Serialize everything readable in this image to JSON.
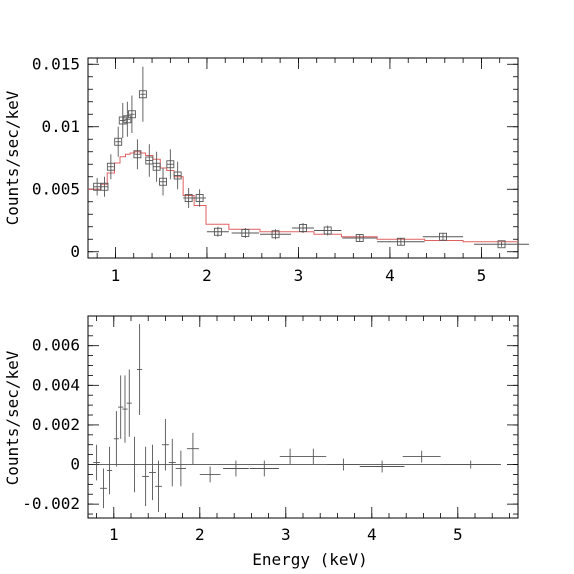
{
  "chart_data": [
    {
      "type": "scatter",
      "ylabel": "Counts/sec/keV",
      "xlabel": "",
      "xlim": [
        0.7,
        5.4
      ],
      "ylim": [
        -0.0005,
        0.0155
      ],
      "xticks": [
        1,
        2,
        3,
        4,
        5
      ],
      "xtick_labels": [
        "1",
        "2",
        "3",
        "4",
        "5"
      ],
      "yticks": [
        0,
        0.005,
        0.01,
        0.015
      ],
      "ytick_labels": [
        "0",
        "0.005",
        "0.01",
        "0.015"
      ],
      "series": [
        {
          "marker": "square",
          "points": [
            {
              "x": 0.8,
              "xerr": 0.04,
              "y": 0.0052,
              "yerr": 0.0007
            },
            {
              "x": 0.88,
              "xerr": 0.04,
              "y": 0.0052,
              "yerr": 0.0008
            },
            {
              "x": 0.95,
              "xerr": 0.03,
              "y": 0.0068,
              "yerr": 0.001
            },
            {
              "x": 1.03,
              "xerr": 0.03,
              "y": 0.0088,
              "yerr": 0.0012
            },
            {
              "x": 1.08,
              "xerr": 0.03,
              "y": 0.0105,
              "yerr": 0.0014
            },
            {
              "x": 1.13,
              "xerr": 0.03,
              "y": 0.0106,
              "yerr": 0.0014
            },
            {
              "x": 1.18,
              "xerr": 0.03,
              "y": 0.011,
              "yerr": 0.0015
            },
            {
              "x": 1.24,
              "xerr": 0.03,
              "y": 0.0078,
              "yerr": 0.0012
            },
            {
              "x": 1.3,
              "xerr": 0.03,
              "y": 0.0126,
              "yerr": 0.0022
            },
            {
              "x": 1.37,
              "xerr": 0.04,
              "y": 0.0073,
              "yerr": 0.0013
            },
            {
              "x": 1.45,
              "xerr": 0.04,
              "y": 0.0068,
              "yerr": 0.0012
            },
            {
              "x": 1.52,
              "xerr": 0.04,
              "y": 0.0056,
              "yerr": 0.0011
            },
            {
              "x": 1.6,
              "xerr": 0.04,
              "y": 0.007,
              "yerr": 0.0012
            },
            {
              "x": 1.68,
              "xerr": 0.04,
              "y": 0.0061,
              "yerr": 0.0011
            },
            {
              "x": 1.8,
              "xerr": 0.06,
              "y": 0.0043,
              "yerr": 0.0008
            },
            {
              "x": 1.92,
              "xerr": 0.07,
              "y": 0.0043,
              "yerr": 0.0007
            },
            {
              "x": 2.12,
              "xerr": 0.12,
              "y": 0.0016,
              "yerr": 0.0004
            },
            {
              "x": 2.42,
              "xerr": 0.15,
              "y": 0.0015,
              "yerr": 0.0004
            },
            {
              "x": 2.75,
              "xerr": 0.17,
              "y": 0.0014,
              "yerr": 0.0004
            },
            {
              "x": 3.05,
              "xerr": 0.12,
              "y": 0.0019,
              "yerr": 0.0004
            },
            {
              "x": 3.32,
              "xerr": 0.15,
              "y": 0.0017,
              "yerr": 0.0004
            },
            {
              "x": 3.67,
              "xerr": 0.19,
              "y": 0.0011,
              "yerr": 0.0003
            },
            {
              "x": 4.12,
              "xerr": 0.26,
              "y": 0.0008,
              "yerr": 0.0003
            },
            {
              "x": 4.58,
              "xerr": 0.22,
              "y": 0.0012,
              "yerr": 0.0003
            },
            {
              "x": 5.22,
              "xerr": 0.3,
              "y": 0.0006,
              "yerr": 0.0002
            }
          ]
        }
      ],
      "model_step": [
        [
          0.7,
          0.005
        ],
        [
          0.84,
          0.0054
        ],
        [
          0.91,
          0.0063
        ],
        [
          0.99,
          0.0071
        ],
        [
          1.05,
          0.0076
        ],
        [
          1.11,
          0.0078
        ],
        [
          1.16,
          0.0079
        ],
        [
          1.21,
          0.008
        ],
        [
          1.27,
          0.0079
        ],
        [
          1.33,
          0.0077
        ],
        [
          1.41,
          0.0074
        ],
        [
          1.49,
          0.0067
        ],
        [
          1.56,
          0.0065
        ],
        [
          1.64,
          0.006
        ],
        [
          1.74,
          0.0045
        ],
        [
          1.86,
          0.0037
        ],
        [
          1.99,
          0.0022
        ],
        [
          2.24,
          0.0018
        ],
        [
          2.58,
          0.0016
        ],
        [
          2.92,
          0.0016
        ],
        [
          3.17,
          0.0014
        ],
        [
          3.47,
          0.0012
        ],
        [
          3.86,
          0.001
        ],
        [
          4.38,
          0.0009
        ],
        [
          4.8,
          0.0008
        ],
        [
          5.4,
          0.0008
        ]
      ]
    },
    {
      "type": "scatter",
      "ylabel": "Counts/sec/keV",
      "xlabel": "Energy (keV)",
      "xlim": [
        0.7,
        5.7
      ],
      "ylim": [
        -0.0027,
        0.0075
      ],
      "xticks": [
        1,
        2,
        3,
        4,
        5
      ],
      "xtick_labels": [
        "1",
        "2",
        "3",
        "4",
        "5"
      ],
      "yticks": [
        -0.002,
        0,
        0.002,
        0.004,
        0.006
      ],
      "ytick_labels": [
        "-0.002",
        "0",
        "0.002",
        "0.004",
        "0.006"
      ],
      "series": [
        {
          "marker": "cross",
          "points": [
            {
              "x": 0.8,
              "xerr": 0.04,
              "y": 0.0001,
              "yerr": 0.0009
            },
            {
              "x": 0.88,
              "xerr": 0.04,
              "y": -0.0012,
              "yerr": 0.001
            },
            {
              "x": 0.95,
              "xerr": 0.03,
              "y": -0.0003,
              "yerr": 0.0012
            },
            {
              "x": 1.03,
              "xerr": 0.03,
              "y": 0.0013,
              "yerr": 0.0014
            },
            {
              "x": 1.08,
              "xerr": 0.03,
              "y": 0.0029,
              "yerr": 0.0016
            },
            {
              "x": 1.13,
              "xerr": 0.03,
              "y": 0.0028,
              "yerr": 0.0017
            },
            {
              "x": 1.18,
              "xerr": 0.03,
              "y": 0.0031,
              "yerr": 0.0017
            },
            {
              "x": 1.24,
              "xerr": 0.03,
              "y": 0.0,
              "yerr": 0.0014
            },
            {
              "x": 1.3,
              "xerr": 0.03,
              "y": 0.0048,
              "yerr": 0.0023
            },
            {
              "x": 1.37,
              "xerr": 0.04,
              "y": -0.0006,
              "yerr": 0.0015
            },
            {
              "x": 1.45,
              "xerr": 0.04,
              "y": -0.0004,
              "yerr": 0.0014
            },
            {
              "x": 1.52,
              "xerr": 0.04,
              "y": -0.0011,
              "yerr": 0.0013
            },
            {
              "x": 1.6,
              "xerr": 0.04,
              "y": 0.001,
              "yerr": 0.0013
            },
            {
              "x": 1.68,
              "xerr": 0.04,
              "y": 0.0001,
              "yerr": 0.0012
            },
            {
              "x": 1.78,
              "xerr": 0.06,
              "y": -0.0002,
              "yerr": 0.0009
            },
            {
              "x": 1.92,
              "xerr": 0.07,
              "y": 0.0008,
              "yerr": 0.0008
            },
            {
              "x": 2.12,
              "xerr": 0.12,
              "y": -0.0005,
              "yerr": 0.0004
            },
            {
              "x": 2.42,
              "xerr": 0.15,
              "y": -0.0002,
              "yerr": 0.0004
            },
            {
              "x": 2.75,
              "xerr": 0.17,
              "y": -0.0002,
              "yerr": 0.0004
            },
            {
              "x": 3.05,
              "xerr": 0.12,
              "y": 0.0004,
              "yerr": 0.0004
            },
            {
              "x": 3.32,
              "xerr": 0.15,
              "y": 0.0004,
              "yerr": 0.0004
            },
            {
              "x": 3.67,
              "xerr": 0.19,
              "y": 0.0,
              "yerr": 0.0003
            },
            {
              "x": 4.12,
              "xerr": 0.26,
              "y": -0.0001,
              "yerr": 0.0003
            },
            {
              "x": 4.58,
              "xerr": 0.22,
              "y": 0.0004,
              "yerr": 0.0003
            },
            {
              "x": 5.15,
              "xerr": 0.35,
              "y": 0.0,
              "yerr": 0.0002
            }
          ]
        }
      ],
      "zero_line": {
        "from": 0.7,
        "to": 5.5,
        "y": 0
      }
    }
  ]
}
